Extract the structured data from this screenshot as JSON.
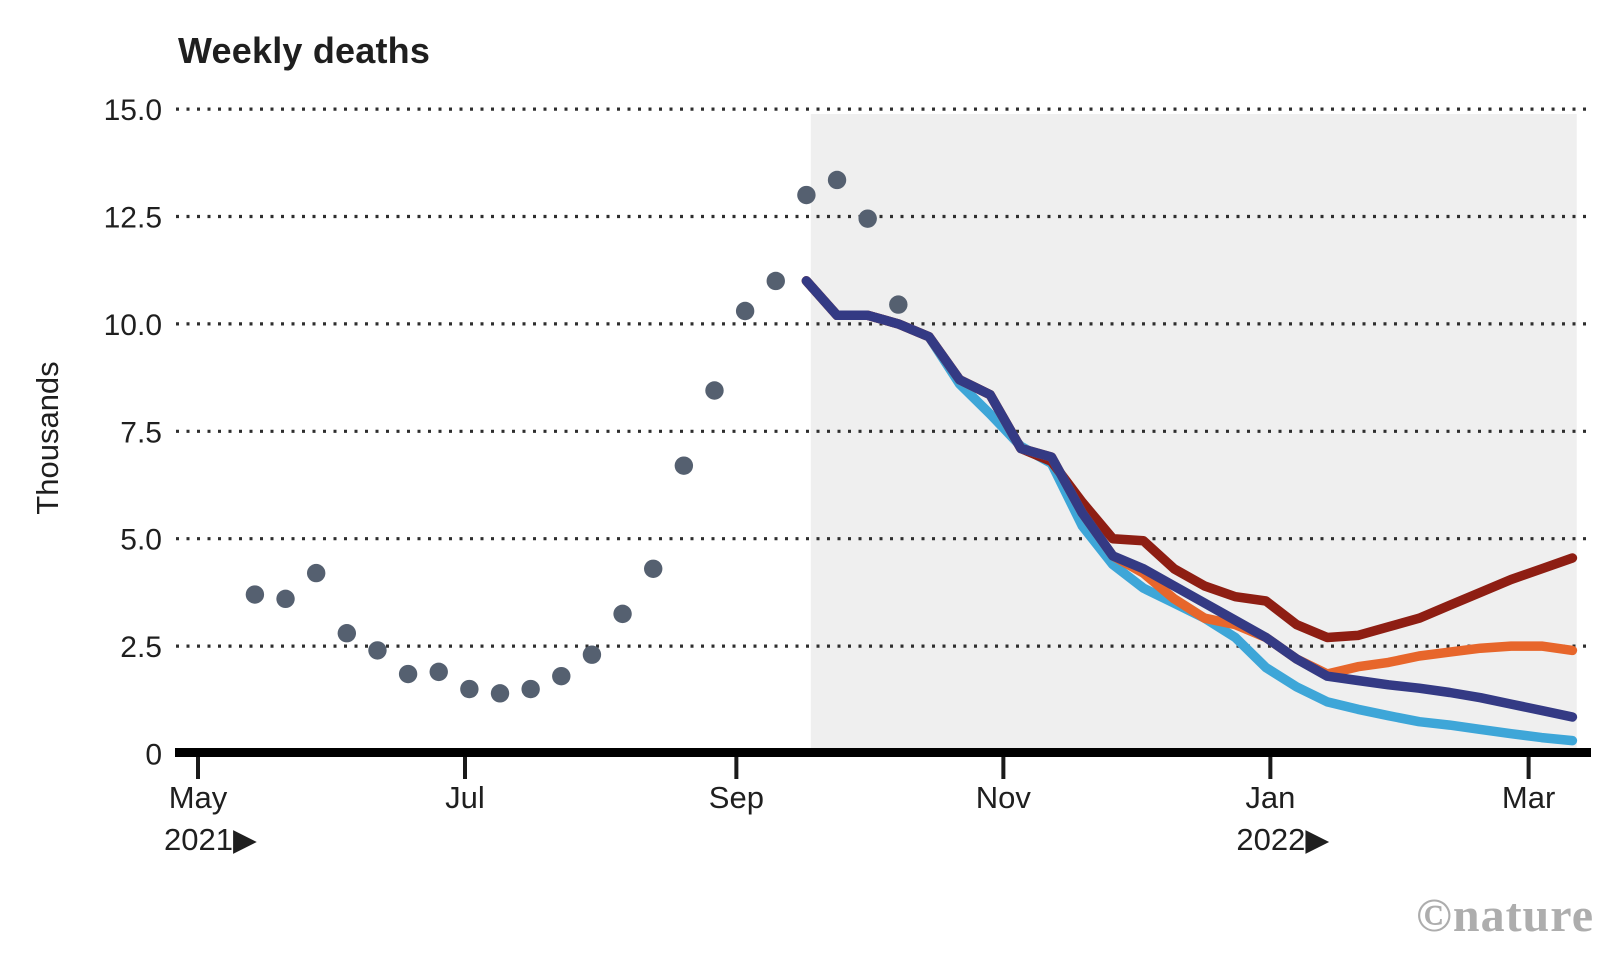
{
  "title": "Weekly deaths",
  "y_axis_label": "Thousands",
  "watermark": "©nature",
  "chart_data": {
    "type": "line",
    "title": "Weekly deaths",
    "xlabel": "",
    "ylabel": "Thousands",
    "ylim": [
      0,
      15
    ],
    "grid": "horizontal-dotted",
    "legend": "none",
    "y_ticks": [
      {
        "value": 15,
        "label": "15.0"
      },
      {
        "value": 12.5,
        "label": "12.5"
      },
      {
        "value": 10,
        "label": "10.0"
      },
      {
        "value": 7.5,
        "label": "7.5"
      },
      {
        "value": 5,
        "label": "5.0"
      },
      {
        "value": 2.5,
        "label": "2.5"
      },
      {
        "value": 0,
        "label": "0"
      }
    ],
    "x_ticks": [
      {
        "date": "2021-05-01",
        "label": "May",
        "year_label": "2021▶"
      },
      {
        "date": "2021-07-01",
        "label": "Jul"
      },
      {
        "date": "2021-09-01",
        "label": "Sep"
      },
      {
        "date": "2021-11-01",
        "label": "Nov"
      },
      {
        "date": "2022-01-01",
        "label": "Jan",
        "year_label": "2022▶"
      },
      {
        "date": "2022-03-01",
        "label": "Mar"
      }
    ],
    "projection_region": {
      "start": "2021-09-18",
      "end": "2022-03-12"
    },
    "observed": {
      "name": "observed-weekly-deaths",
      "dates": [
        "2021-05-14",
        "2021-05-21",
        "2021-05-28",
        "2021-06-04",
        "2021-06-11",
        "2021-06-18",
        "2021-06-25",
        "2021-07-02",
        "2021-07-09",
        "2021-07-16",
        "2021-07-23",
        "2021-07-30",
        "2021-08-06",
        "2021-08-13",
        "2021-08-20",
        "2021-08-27",
        "2021-09-03",
        "2021-09-10",
        "2021-09-17",
        "2021-09-24",
        "2021-10-01",
        "2021-10-08"
      ],
      "values": [
        3.7,
        3.6,
        4.2,
        2.8,
        2.4,
        1.85,
        1.9,
        1.5,
        1.4,
        1.5,
        1.8,
        2.3,
        3.25,
        4.3,
        6.7,
        8.45,
        10.3,
        11.0,
        13.0,
        13.35,
        12.45,
        10.45
      ]
    },
    "projection_dates": [
      "2021-09-17",
      "2021-09-24",
      "2021-10-01",
      "2021-10-08",
      "2021-10-15",
      "2021-10-22",
      "2021-10-29",
      "2021-11-05",
      "2021-11-12",
      "2021-11-19",
      "2021-11-26",
      "2021-12-03",
      "2021-12-10",
      "2021-12-17",
      "2021-12-24",
      "2021-12-31",
      "2022-01-07",
      "2022-01-14",
      "2022-01-21",
      "2022-01-28",
      "2022-02-04",
      "2022-02-11",
      "2022-02-18",
      "2022-02-25",
      "2022-03-04",
      "2022-03-11"
    ],
    "series": [
      {
        "name": "scenario-light-blue",
        "color": "#3ea6d8",
        "values": [
          11.0,
          10.2,
          10.2,
          10.0,
          9.7,
          8.6,
          7.9,
          7.15,
          6.75,
          5.3,
          4.4,
          3.85,
          3.5,
          3.15,
          2.7,
          2.0,
          1.55,
          1.2,
          1.03,
          0.88,
          0.74,
          0.66,
          0.56,
          0.46,
          0.37,
          0.3
        ]
      },
      {
        "name": "scenario-dark-red",
        "color": "#8e1e13",
        "values": [
          11.0,
          10.2,
          10.2,
          10.0,
          9.7,
          8.7,
          8.35,
          7.1,
          6.8,
          5.85,
          5.0,
          4.95,
          4.3,
          3.9,
          3.65,
          3.55,
          3.0,
          2.7,
          2.75,
          2.95,
          3.15,
          3.45,
          3.75,
          4.05,
          4.3,
          4.55
        ]
      },
      {
        "name": "scenario-orange",
        "color": "#e7662b",
        "values": [
          11.0,
          10.2,
          10.2,
          10.0,
          9.7,
          8.7,
          8.35,
          7.1,
          6.9,
          5.6,
          4.6,
          4.2,
          3.6,
          3.15,
          3.0,
          2.7,
          2.2,
          1.85,
          2.02,
          2.12,
          2.27,
          2.36,
          2.45,
          2.5,
          2.5,
          2.4
        ]
      },
      {
        "name": "scenario-navy",
        "color": "#343a84",
        "values": [
          11.0,
          10.2,
          10.2,
          10.0,
          9.7,
          8.7,
          8.35,
          7.1,
          6.9,
          5.6,
          4.6,
          4.3,
          3.9,
          3.5,
          3.1,
          2.7,
          2.2,
          1.8,
          1.7,
          1.6,
          1.52,
          1.42,
          1.3,
          1.15,
          1.0,
          0.85
        ]
      }
    ],
    "colors": {
      "observed_dots": "#556070",
      "shading": "#efefef",
      "gridline": "#2e2e2e",
      "axis": "#000000",
      "tick": "#1a1a1a",
      "text": "#1f1f1f",
      "watermark": "#adadad"
    }
  }
}
